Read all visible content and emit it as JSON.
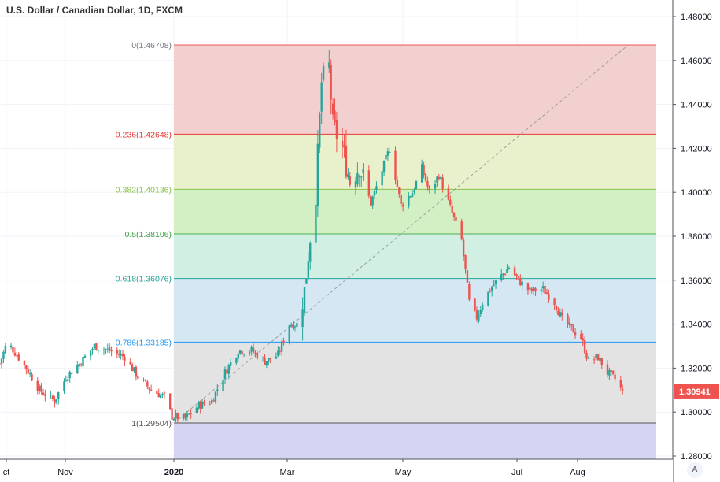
{
  "header": {
    "title": "U.S. Dollar / Canadian Dollar, 1D, FXCM"
  },
  "price_axis": {
    "ticks": [
      "1.48000",
      "1.46000",
      "1.44000",
      "1.42000",
      "1.40000",
      "1.38000",
      "1.36000",
      "1.34000",
      "1.32000",
      "1.30000",
      "1.28000"
    ],
    "current_price": "1.30941"
  },
  "time_axis": {
    "labels": [
      "ct",
      "Nov",
      "2020",
      "Mar",
      "May",
      "Jul",
      "Aug"
    ]
  },
  "auto_button": "A",
  "colors": {
    "up": "#26a69a",
    "down": "#ef5350",
    "price_tag": "#ef5350"
  },
  "chart_data": {
    "type": "candlestick",
    "symbol": "U.S. Dollar / Canadian Dollar",
    "interval": "1D",
    "source": "FXCM",
    "x_range": [
      "2019-10",
      "2020-08"
    ],
    "ylim": [
      1.275,
      1.485
    ],
    "last_price": 1.30941,
    "trend_points": [
      {
        "date": "2019-10-01",
        "close": 1.322
      },
      {
        "date": "2019-10-05",
        "close": 1.332
      },
      {
        "date": "2019-10-15",
        "close": 1.32
      },
      {
        "date": "2019-10-22",
        "close": 1.31
      },
      {
        "date": "2019-10-30",
        "close": 1.305
      },
      {
        "date": "2019-11-05",
        "close": 1.316
      },
      {
        "date": "2019-11-12",
        "close": 1.322
      },
      {
        "date": "2019-11-20",
        "close": 1.33
      },
      {
        "date": "2019-11-28",
        "close": 1.328
      },
      {
        "date": "2019-12-06",
        "close": 1.325
      },
      {
        "date": "2019-12-13",
        "close": 1.316
      },
      {
        "date": "2019-12-20",
        "close": 1.31
      },
      {
        "date": "2019-12-27",
        "close": 1.307
      },
      {
        "date": "2019-12-31",
        "close": 1.298
      },
      {
        "date": "2020-01-07",
        "close": 1.297
      },
      {
        "date": "2020-01-14",
        "close": 1.303
      },
      {
        "date": "2020-01-21",
        "close": 1.305
      },
      {
        "date": "2020-01-28",
        "close": 1.318
      },
      {
        "date": "2020-02-04",
        "close": 1.328
      },
      {
        "date": "2020-02-11",
        "close": 1.328
      },
      {
        "date": "2020-02-18",
        "close": 1.323
      },
      {
        "date": "2020-02-25",
        "close": 1.326
      },
      {
        "date": "2020-03-02",
        "close": 1.34
      },
      {
        "date": "2020-03-06",
        "close": 1.34
      },
      {
        "date": "2020-03-10",
        "close": 1.355
      },
      {
        "date": "2020-03-13",
        "close": 1.38
      },
      {
        "date": "2020-03-16",
        "close": 1.4
      },
      {
        "date": "2020-03-19",
        "close": 1.45
      },
      {
        "date": "2020-03-23",
        "close": 1.457
      },
      {
        "date": "2020-03-25",
        "close": 1.43
      },
      {
        "date": "2020-03-30",
        "close": 1.42
      },
      {
        "date": "2020-04-03",
        "close": 1.405
      },
      {
        "date": "2020-04-08",
        "close": 1.412
      },
      {
        "date": "2020-04-14",
        "close": 1.395
      },
      {
        "date": "2020-04-20",
        "close": 1.41
      },
      {
        "date": "2020-04-24",
        "close": 1.42
      },
      {
        "date": "2020-04-30",
        "close": 1.394
      },
      {
        "date": "2020-05-06",
        "close": 1.4
      },
      {
        "date": "2020-05-11",
        "close": 1.411
      },
      {
        "date": "2020-05-15",
        "close": 1.4
      },
      {
        "date": "2020-05-20",
        "close": 1.408
      },
      {
        "date": "2020-05-26",
        "close": 1.393
      },
      {
        "date": "2020-06-01",
        "close": 1.378
      },
      {
        "date": "2020-06-05",
        "close": 1.35
      },
      {
        "date": "2020-06-09",
        "close": 1.343
      },
      {
        "date": "2020-06-12",
        "close": 1.35
      },
      {
        "date": "2020-06-17",
        "close": 1.357
      },
      {
        "date": "2020-06-22",
        "close": 1.362
      },
      {
        "date": "2020-06-26",
        "close": 1.366
      },
      {
        "date": "2020-07-01",
        "close": 1.36
      },
      {
        "date": "2020-07-07",
        "close": 1.355
      },
      {
        "date": "2020-07-14",
        "close": 1.356
      },
      {
        "date": "2020-07-20",
        "close": 1.35
      },
      {
        "date": "2020-07-24",
        "close": 1.342
      },
      {
        "date": "2020-07-29",
        "close": 1.338
      },
      {
        "date": "2020-08-03",
        "close": 1.334
      },
      {
        "date": "2020-08-07",
        "close": 1.323
      },
      {
        "date": "2020-08-12",
        "close": 1.325
      },
      {
        "date": "2020-08-17",
        "close": 1.318
      },
      {
        "date": "2020-08-21",
        "close": 1.315
      },
      {
        "date": "2020-08-25",
        "close": 1.309
      }
    ],
    "fibonacci": {
      "levels": [
        {
          "label": "0(1.46708)",
          "value": 1.46708,
          "line": "#ef5350",
          "fill": "#f3d0d0"
        },
        {
          "label": "0.236(1.42648)",
          "value": 1.42648,
          "line": "#e53935",
          "fill": "#e9f1cc"
        },
        {
          "label": "0.382(1.40136)",
          "value": 1.40136,
          "line": "#8bc34a",
          "fill": "#d3f0c5"
        },
        {
          "label": "0.5(1.38106)",
          "value": 1.38106,
          "line": "#4caf50",
          "fill": "#d1f0e3"
        },
        {
          "label": "0.618(1.36076)",
          "value": 1.36076,
          "line": "#26a69a",
          "fill": "#d4e7f3"
        },
        {
          "label": "0.786(1.33185)",
          "value": 1.33185,
          "line": "#2196f3",
          "fill": "#e3e3e3"
        },
        {
          "label": "1(1.29504)",
          "value": 1.29504,
          "line": "#555555",
          "fill": "#d4d4f3"
        }
      ],
      "label_colors": [
        "#787b86",
        "#e53935",
        "#8bc34a",
        "#43a047",
        "#26a69a",
        "#2196f3",
        "#555555"
      ],
      "trend_line": [
        {
          "date": "2020-01-01",
          "price": 1.29504
        },
        {
          "date": "2020-08-28",
          "price": 1.46708
        }
      ]
    }
  }
}
